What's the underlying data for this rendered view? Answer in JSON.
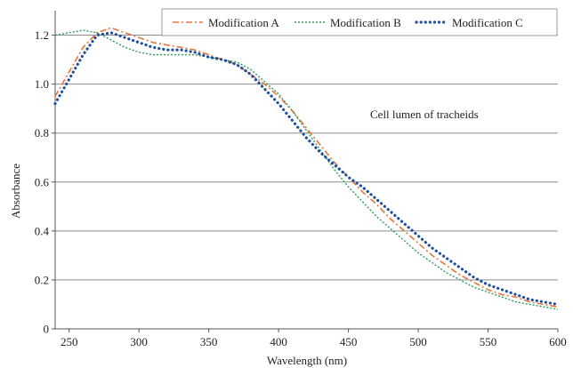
{
  "chart_data": {
    "type": "line",
    "title": "",
    "xlabel": "Wavelength (nm)",
    "ylabel": "Absorbance",
    "annotation": "Cell lumen of tracheids",
    "xlim": [
      240,
      600
    ],
    "ylim": [
      0,
      1.3
    ],
    "x_ticks": [
      250,
      300,
      350,
      400,
      450,
      500,
      550,
      600
    ],
    "x_tick_labels": [
      "250",
      "300",
      "350",
      "400",
      "450",
      "500",
      "550",
      "600"
    ],
    "y_ticks": [
      0,
      0.2,
      0.4,
      0.6,
      0.8,
      1.0,
      1.2
    ],
    "y_tick_labels": [
      "0",
      "0.2",
      "0.4",
      "0.6",
      "0.8",
      "1.0",
      "1.2"
    ],
    "grid": "horizontal",
    "legend_position": "top-right",
    "series": [
      {
        "name": "Modification A",
        "color": "#e8743b",
        "style": "dash-dot",
        "points": [
          [
            240,
            0.95
          ],
          [
            250,
            1.05
          ],
          [
            260,
            1.15
          ],
          [
            270,
            1.21
          ],
          [
            280,
            1.23
          ],
          [
            290,
            1.21
          ],
          [
            300,
            1.19
          ],
          [
            310,
            1.17
          ],
          [
            320,
            1.16
          ],
          [
            330,
            1.15
          ],
          [
            340,
            1.14
          ],
          [
            350,
            1.12
          ],
          [
            360,
            1.1
          ],
          [
            370,
            1.08
          ],
          [
            380,
            1.04
          ],
          [
            390,
            1.0
          ],
          [
            400,
            0.95
          ],
          [
            410,
            0.89
          ],
          [
            420,
            0.82
          ],
          [
            430,
            0.75
          ],
          [
            440,
            0.68
          ],
          [
            450,
            0.62
          ],
          [
            460,
            0.56
          ],
          [
            470,
            0.51
          ],
          [
            480,
            0.45
          ],
          [
            490,
            0.4
          ],
          [
            500,
            0.35
          ],
          [
            510,
            0.3
          ],
          [
            520,
            0.26
          ],
          [
            530,
            0.22
          ],
          [
            540,
            0.19
          ],
          [
            550,
            0.16
          ],
          [
            560,
            0.14
          ],
          [
            570,
            0.13
          ],
          [
            580,
            0.11
          ],
          [
            590,
            0.1
          ],
          [
            600,
            0.09
          ]
        ]
      },
      {
        "name": "Modification B",
        "color": "#2e9a5a",
        "style": "dotted",
        "points": [
          [
            240,
            1.2
          ],
          [
            250,
            1.21
          ],
          [
            260,
            1.22
          ],
          [
            270,
            1.21
          ],
          [
            280,
            1.18
          ],
          [
            290,
            1.15
          ],
          [
            300,
            1.13
          ],
          [
            310,
            1.12
          ],
          [
            320,
            1.12
          ],
          [
            330,
            1.12
          ],
          [
            340,
            1.12
          ],
          [
            350,
            1.11
          ],
          [
            360,
            1.1
          ],
          [
            370,
            1.09
          ],
          [
            380,
            1.06
          ],
          [
            390,
            1.01
          ],
          [
            400,
            0.96
          ],
          [
            410,
            0.89
          ],
          [
            420,
            0.81
          ],
          [
            430,
            0.73
          ],
          [
            440,
            0.65
          ],
          [
            450,
            0.58
          ],
          [
            460,
            0.52
          ],
          [
            470,
            0.46
          ],
          [
            480,
            0.41
          ],
          [
            490,
            0.36
          ],
          [
            500,
            0.31
          ],
          [
            510,
            0.27
          ],
          [
            520,
            0.23
          ],
          [
            530,
            0.2
          ],
          [
            540,
            0.17
          ],
          [
            550,
            0.15
          ],
          [
            560,
            0.13
          ],
          [
            570,
            0.11
          ],
          [
            580,
            0.1
          ],
          [
            590,
            0.09
          ],
          [
            600,
            0.08
          ]
        ]
      },
      {
        "name": "Modification C",
        "color": "#1f4fa0",
        "style": "heavy-dotted",
        "points": [
          [
            240,
            0.92
          ],
          [
            250,
            1.02
          ],
          [
            260,
            1.12
          ],
          [
            270,
            1.2
          ],
          [
            280,
            1.21
          ],
          [
            290,
            1.19
          ],
          [
            300,
            1.17
          ],
          [
            310,
            1.15
          ],
          [
            320,
            1.14
          ],
          [
            330,
            1.14
          ],
          [
            340,
            1.13
          ],
          [
            350,
            1.11
          ],
          [
            360,
            1.1
          ],
          [
            370,
            1.08
          ],
          [
            380,
            1.04
          ],
          [
            390,
            0.98
          ],
          [
            400,
            0.92
          ],
          [
            410,
            0.85
          ],
          [
            420,
            0.78
          ],
          [
            430,
            0.72
          ],
          [
            440,
            0.67
          ],
          [
            450,
            0.62
          ],
          [
            460,
            0.58
          ],
          [
            470,
            0.53
          ],
          [
            480,
            0.48
          ],
          [
            490,
            0.43
          ],
          [
            500,
            0.38
          ],
          [
            510,
            0.33
          ],
          [
            520,
            0.29
          ],
          [
            530,
            0.25
          ],
          [
            540,
            0.21
          ],
          [
            550,
            0.18
          ],
          [
            560,
            0.16
          ],
          [
            570,
            0.14
          ],
          [
            580,
            0.12
          ],
          [
            590,
            0.11
          ],
          [
            600,
            0.1
          ]
        ]
      }
    ]
  }
}
